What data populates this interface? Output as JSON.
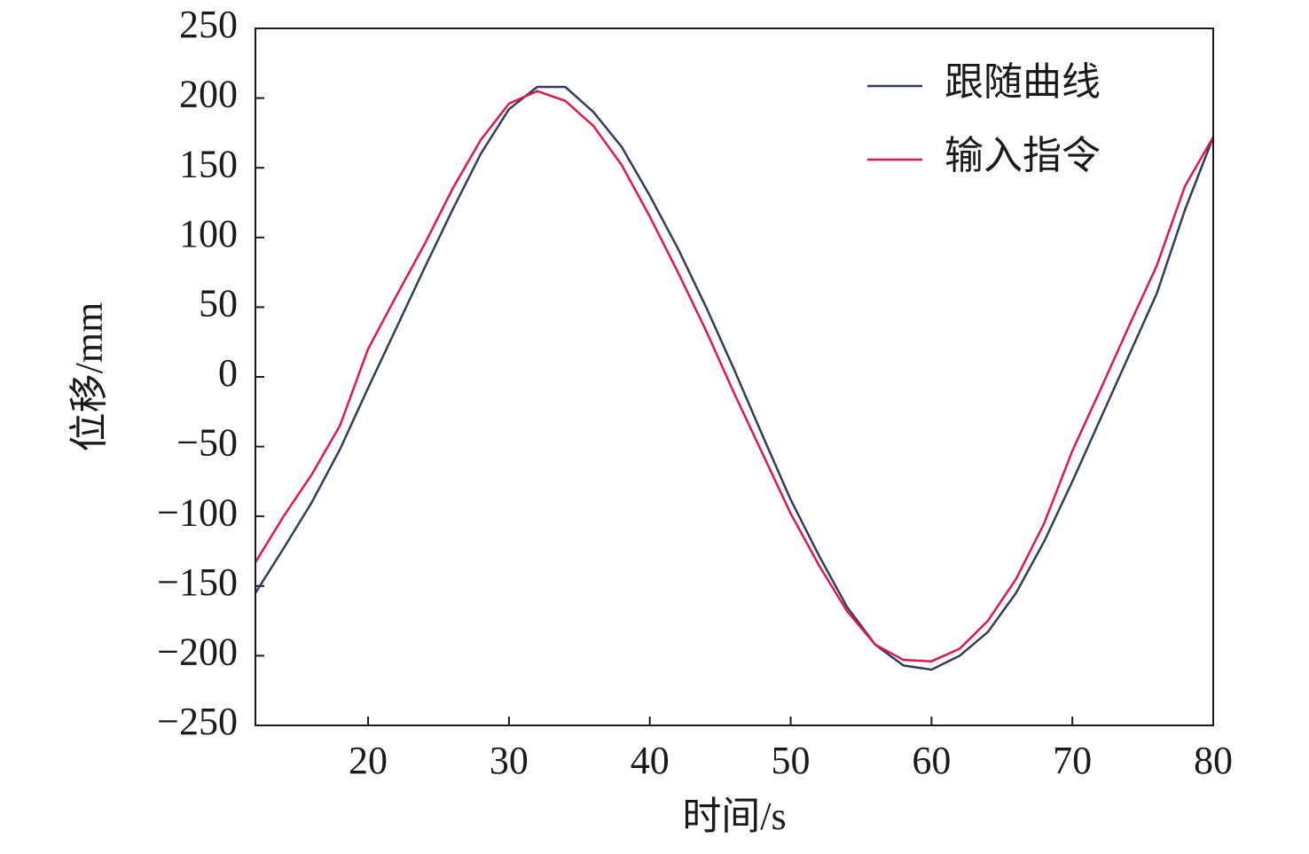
{
  "chart_data": {
    "type": "line",
    "x_label": "时间/s",
    "y_label": "位移/mm",
    "x": [
      12,
      14,
      16,
      18,
      20,
      22,
      24,
      26,
      28,
      30,
      32,
      34,
      36,
      38,
      40,
      42,
      44,
      46,
      48,
      50,
      52,
      54,
      56,
      58,
      60,
      62,
      64,
      66,
      68,
      70,
      72,
      74,
      76,
      78,
      80
    ],
    "series": [
      {
        "name": "跟随曲线",
        "color": "#2f3d5c",
        "values": [
          -155,
          -123,
          -90,
          -52,
          -8,
          35,
          78,
          120,
          160,
          192,
          208,
          208,
          190,
          165,
          130,
          92,
          50,
          5,
          -42,
          -88,
          -128,
          -165,
          -192,
          -207,
          -210,
          -200,
          -183,
          -155,
          -118,
          -75,
          -30,
          15,
          60,
          120,
          172
        ]
      },
      {
        "name": "输入指令",
        "color": "#e0174f",
        "values": [
          -133,
          -100,
          -70,
          -35,
          20,
          58,
          95,
          135,
          170,
          196,
          205,
          198,
          180,
          152,
          115,
          75,
          33,
          -12,
          -55,
          -98,
          -135,
          -168,
          -192,
          -203,
          -204,
          -195,
          -175,
          -145,
          -105,
          -53,
          -9,
          36,
          80,
          137,
          172
        ]
      }
    ],
    "xlim": [
      12,
      80
    ],
    "ylim": [
      -250,
      250
    ],
    "xticks": [
      20,
      30,
      40,
      50,
      60,
      70,
      80
    ],
    "yticks": [
      {
        "value": -250,
        "label": "−250"
      },
      {
        "value": -200,
        "label": "−200"
      },
      {
        "value": -150,
        "label": "−150"
      },
      {
        "value": -100,
        "label": "−100"
      },
      {
        "value": -50,
        "label": "−50"
      },
      0,
      50,
      100,
      150,
      200,
      250
    ],
    "legend": "upper right",
    "grid": false
  }
}
